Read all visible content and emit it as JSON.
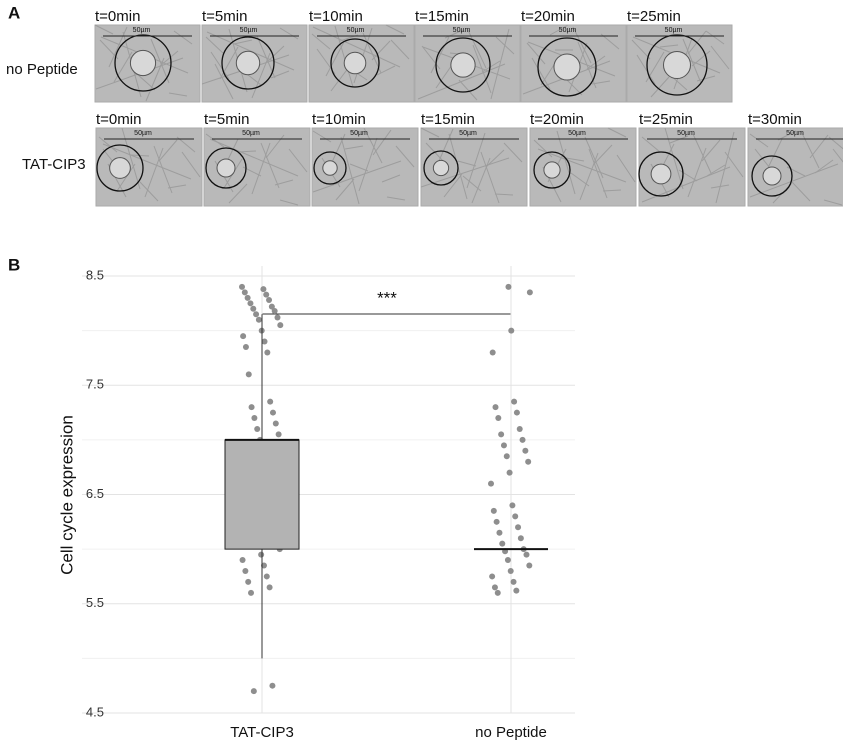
{
  "panel_a": {
    "label": "A",
    "scale_bar": "50µm",
    "rows": [
      {
        "label": "no Peptide",
        "times": [
          "t=0min",
          "t=5min",
          "t=10min",
          "t=15min",
          "t=20min",
          "t=25min"
        ]
      },
      {
        "label": "TAT-CIP3",
        "times": [
          "t=0min",
          "t=5min",
          "t=10min",
          "t=15min",
          "t=20min",
          "t=25min",
          "t=30min"
        ]
      }
    ]
  },
  "chart_data": {
    "type": "box",
    "panel_label": "B",
    "y_label": "Cell cycle expression",
    "categories": [
      "TAT-CIP3",
      "no Peptide"
    ],
    "boxes": [
      {
        "q1": 6.0,
        "median": 7.0,
        "q3": 7.0,
        "whisker_low": 5.0,
        "whisker_high": 8.15
      },
      {
        "q1": 6.0,
        "median": 6.0,
        "q3": 6.0
      }
    ],
    "points": [
      [
        8.4,
        8.38,
        8.35,
        8.33,
        8.3,
        8.28,
        8.25,
        8.22,
        8.2,
        8.18,
        8.15,
        8.12,
        8.1,
        8.05,
        8.0,
        7.95,
        7.9,
        7.85,
        7.8,
        7.6,
        7.35,
        7.3,
        7.25,
        7.2,
        7.15,
        7.1,
        7.05,
        7.0,
        6.95,
        6.9,
        6.85,
        6.8,
        6.75,
        6.7,
        6.35,
        6.3,
        6.25,
        6.2,
        6.15,
        6.1,
        6.05,
        6.0,
        5.95,
        5.9,
        5.85,
        5.8,
        5.75,
        5.7,
        5.65,
        5.6,
        4.75,
        4.7
      ],
      [
        8.4,
        8.35,
        8.0,
        7.8,
        7.35,
        7.3,
        7.25,
        7.2,
        7.1,
        7.05,
        7.0,
        6.95,
        6.9,
        6.85,
        6.8,
        6.7,
        6.6,
        6.4,
        6.35,
        6.3,
        6.25,
        6.2,
        6.15,
        6.1,
        6.05,
        6.0,
        5.98,
        5.95,
        5.9,
        5.85,
        5.8,
        5.75,
        5.7,
        5.65,
        5.62,
        5.6
      ]
    ],
    "significance": "***",
    "ylim": [
      4.5,
      8.5
    ],
    "yticks": [
      4.5,
      5.5,
      6.5,
      7.5,
      8.5
    ],
    "minor_grid": [
      5,
      6,
      7,
      8
    ],
    "grid": true,
    "box_color": "#b3b3b3",
    "point_color": "#8e8e8e"
  }
}
